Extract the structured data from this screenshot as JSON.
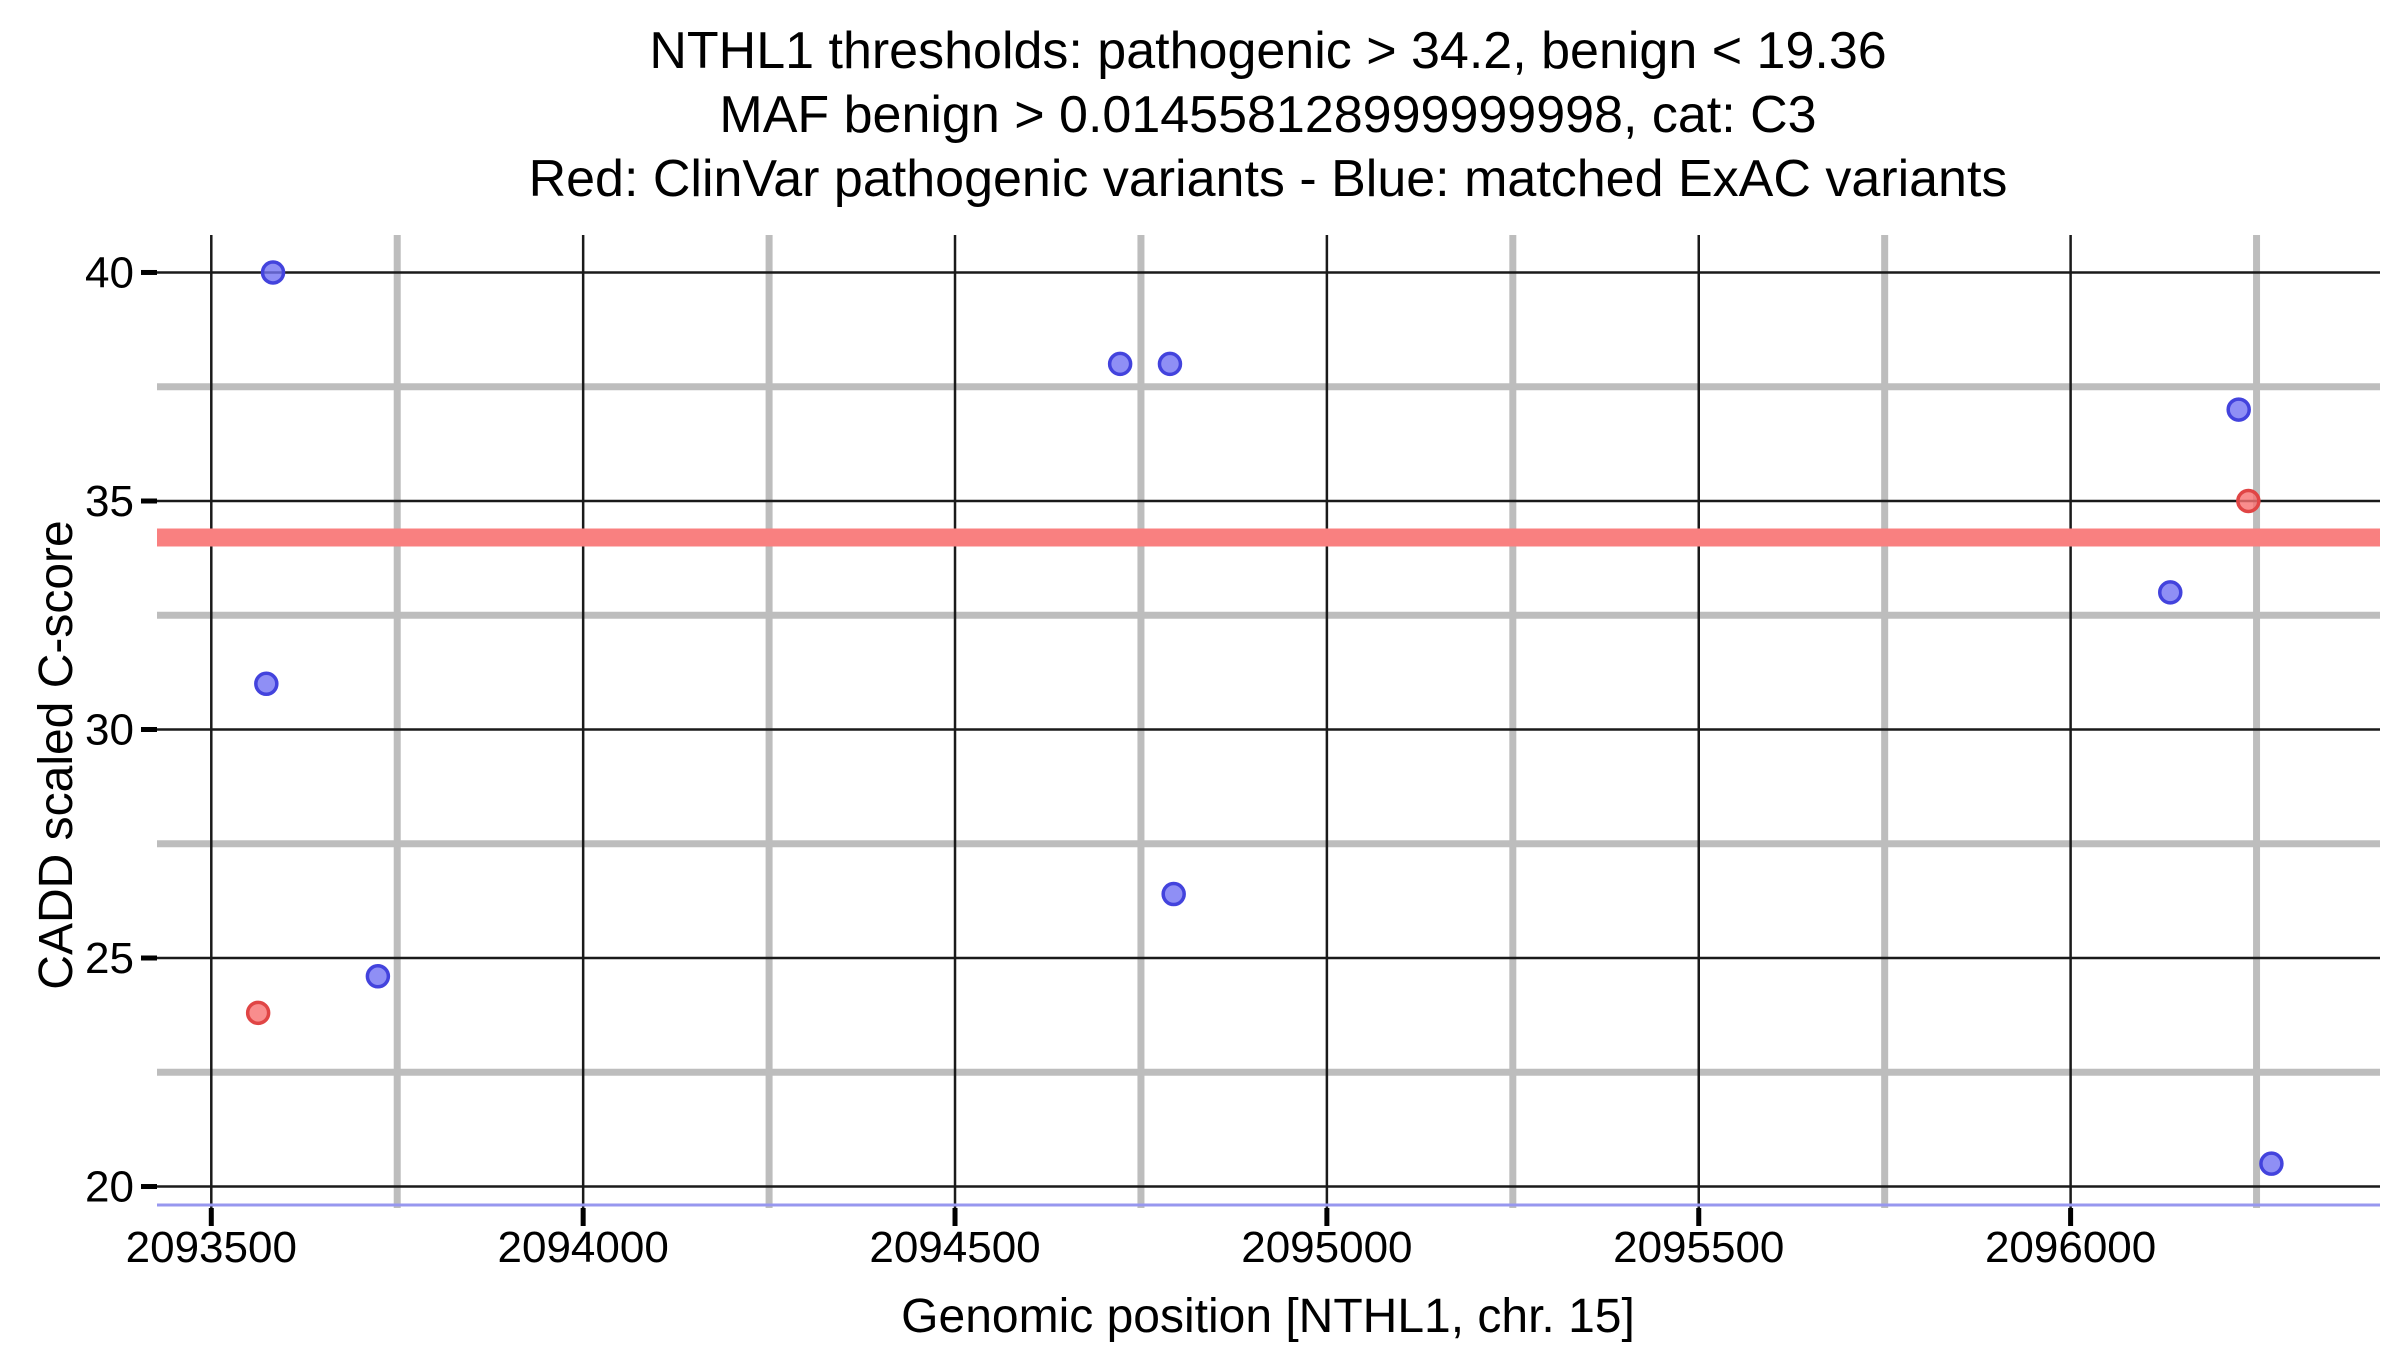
{
  "page": {
    "background": "#ffffff"
  },
  "chart_data": {
    "type": "scatter",
    "title_lines": [
      "NTHL1 thresholds: pathogenic > 34.2, benign < 19.36",
      "MAF benign > 0.014558128999999998, cat: C3",
      "Red: ClinVar pathogenic variants - Blue: matched ExAC variants"
    ],
    "xlabel": "Genomic position [NTHL1, chr. 15]",
    "ylabel": "CADD scaled C-score",
    "xlim": [
      2093427,
      2096416
    ],
    "ylim": [
      19.53,
      40.82
    ],
    "x_ticks": [
      {
        "value": 2093500,
        "label": "2093500"
      },
      {
        "value": 2094000,
        "label": "2094000"
      },
      {
        "value": 2094500,
        "label": "2094500"
      },
      {
        "value": 2095000,
        "label": "2095000"
      },
      {
        "value": 2095500,
        "label": "2095500"
      },
      {
        "value": 2096000,
        "label": "2096000"
      }
    ],
    "x_minor_ticks": [
      2093750,
      2094250,
      2094750,
      2095250,
      2095750,
      2096250
    ],
    "y_ticks": [
      {
        "value": 20,
        "label": "20"
      },
      {
        "value": 25,
        "label": "25"
      },
      {
        "value": 30,
        "label": "30"
      },
      {
        "value": 35,
        "label": "35"
      },
      {
        "value": 40,
        "label": "40"
      }
    ],
    "y_minor_ticks": [
      22.5,
      27.5,
      32.5,
      37.5
    ],
    "grid": {
      "major_color": "#1a1a1a",
      "minor_color": "#bdbdbd",
      "on": true
    },
    "thresholds": {
      "pathogenic": {
        "y": 34.2,
        "color": "#f98080",
        "style": "thick-band"
      },
      "benign": {
        "y": 19.36,
        "color": "#9797ef",
        "style": "thin-line"
      }
    },
    "series": [
      {
        "key": "clinvar-pathogenic",
        "name": "ClinVar pathogenic variants",
        "fill": "#f87171",
        "stroke": "#e04545",
        "points": [
          {
            "x": 2096239,
            "y": 35.0
          },
          {
            "x": 2093563,
            "y": 23.8
          }
        ]
      },
      {
        "key": "exac-matched",
        "name": "matched ExAC variants",
        "fill": "#7373f2",
        "stroke": "#4343dd",
        "points": [
          {
            "x": 2093583,
            "y": 40.0
          },
          {
            "x": 2094722,
            "y": 38.0
          },
          {
            "x": 2094789,
            "y": 38.0
          },
          {
            "x": 2096226,
            "y": 37.0
          },
          {
            "x": 2096134,
            "y": 33.0
          },
          {
            "x": 2093574,
            "y": 31.0
          },
          {
            "x": 2094794,
            "y": 26.4
          },
          {
            "x": 2093724,
            "y": 24.6
          },
          {
            "x": 2096270,
            "y": 20.5
          }
        ]
      }
    ]
  }
}
